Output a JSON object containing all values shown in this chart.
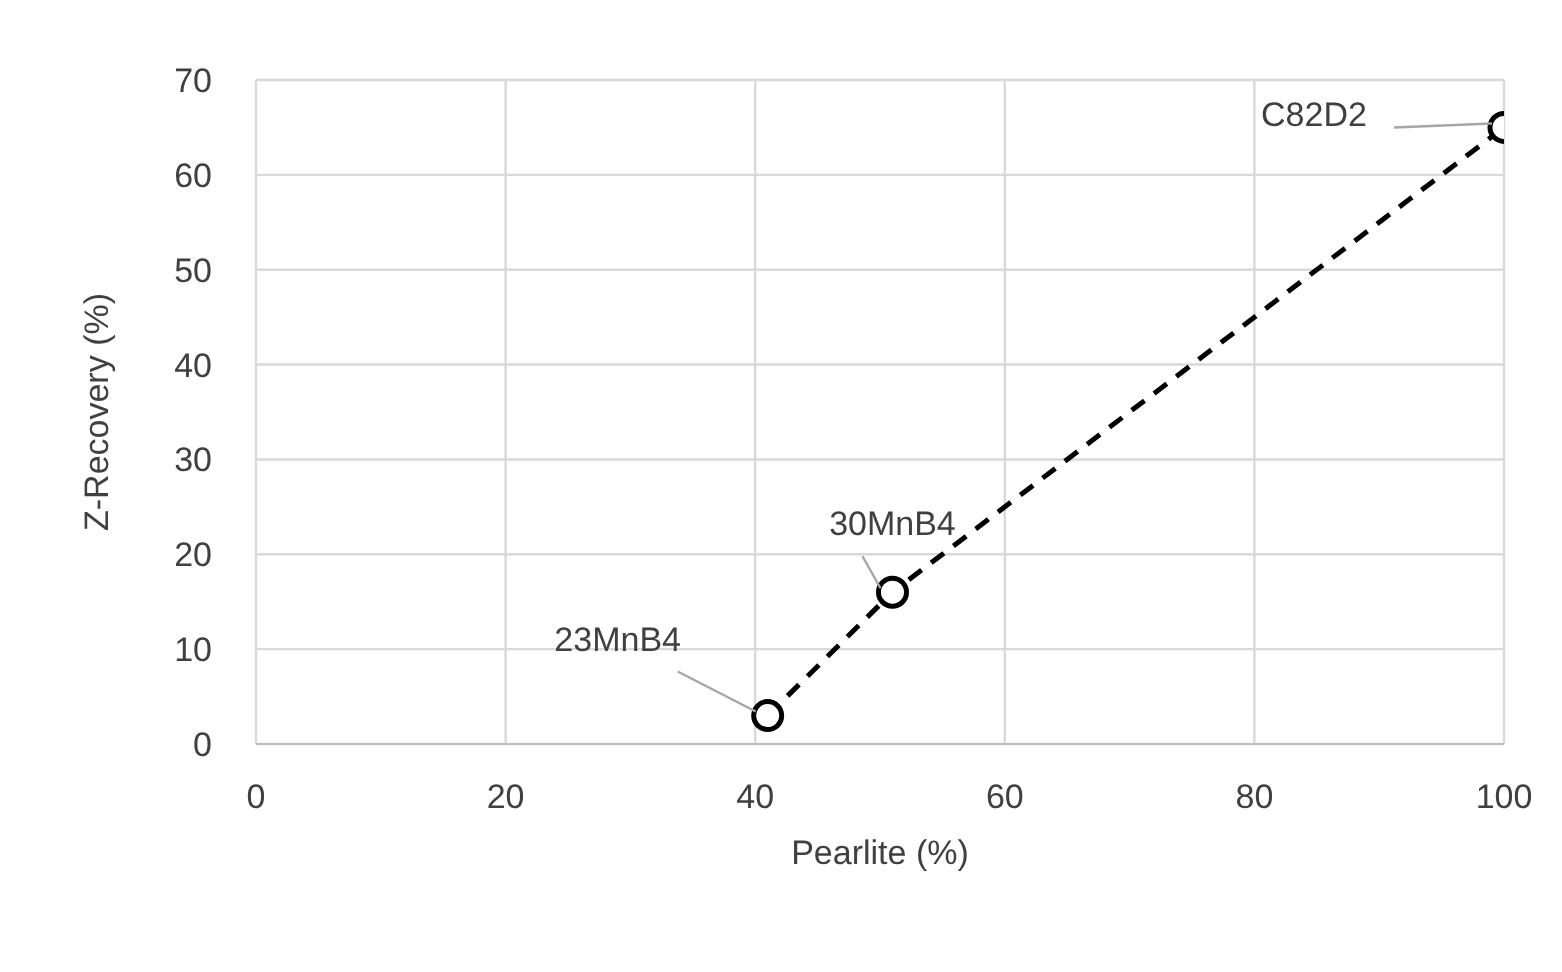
{
  "chart_data": {
    "type": "line",
    "xlabel": "Pearlite (%)",
    "ylabel": "Z-Recovery (%)",
    "x": [
      41,
      51,
      100
    ],
    "series": [
      {
        "color": "#000000",
        "values": [
          3,
          16,
          65
        ]
      }
    ],
    "xlim": [
      0,
      100
    ],
    "xticks": [
      0,
      20,
      40,
      60,
      80,
      100
    ],
    "ylim": [
      0,
      70
    ],
    "yticks": [
      0,
      10,
      20,
      30,
      40,
      50,
      60,
      70
    ],
    "grid": true,
    "legend": false,
    "marker": "circle",
    "line_style": "dashed",
    "annotations": [
      {
        "text": "23MnB4",
        "x": 41,
        "y": 3
      },
      {
        "text": "30MnB4",
        "x": 51,
        "y": 16
      },
      {
        "text": "C82D2",
        "x": 100,
        "y": 65
      }
    ]
  }
}
